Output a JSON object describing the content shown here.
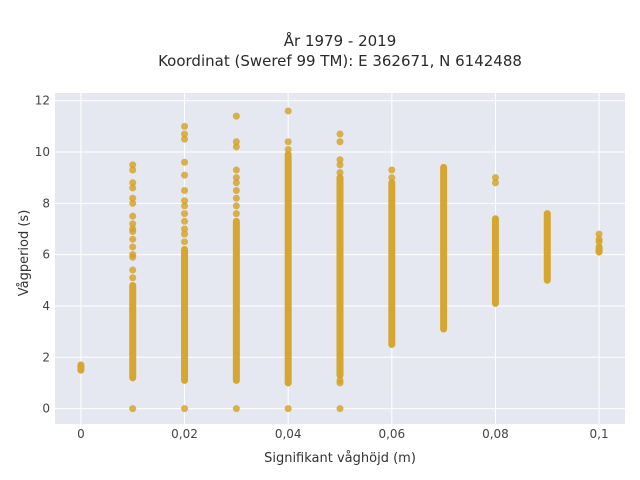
{
  "chart_data": {
    "type": "scatter",
    "title_line1": "År 1979 - 2019",
    "title_line2": "Koordinat (Sweref 99 TM): E 362671, N 6142488",
    "xlabel": "Signifikant våghöjd (m)",
    "ylabel": "Vågperiod (s)",
    "xlim": [
      -0.005,
      0.105
    ],
    "ylim": [
      -0.6,
      12.3
    ],
    "xticks": [
      0,
      0.02,
      0.04,
      0.06,
      0.08,
      0.1
    ],
    "xtick_labels": [
      "0",
      "0,02",
      "0,04",
      "0,06",
      "0,08",
      "0,1"
    ],
    "yticks": [
      0,
      2,
      4,
      6,
      8,
      10,
      12
    ],
    "ytick_labels": [
      "0",
      "2",
      "4",
      "6",
      "8",
      "10",
      "12"
    ],
    "grid": true,
    "colors": {
      "marker": "#D4A020",
      "plot_bg": "#E5E8F0",
      "grid": "#ffffff"
    },
    "columns": [
      {
        "x": 0,
        "dense": [
          1.5,
          1.7
        ],
        "points": []
      },
      {
        "x": 0.01,
        "dense": [
          1.2,
          4.8
        ],
        "points": [
          0,
          5.1,
          5.4,
          5.9,
          6.0,
          6.3,
          6.6,
          6.9,
          7.0,
          7.2,
          7.5,
          8.0,
          8.2,
          8.6,
          8.8,
          9.3,
          9.5
        ]
      },
      {
        "x": 0.02,
        "dense": [
          1.1,
          6.2
        ],
        "points": [
          0,
          6.5,
          6.8,
          7.0,
          7.3,
          7.6,
          7.9,
          8.1,
          8.5,
          9.1,
          9.6,
          10.5,
          10.7,
          11.0
        ]
      },
      {
        "x": 0.03,
        "dense": [
          1.1,
          7.3
        ],
        "points": [
          0,
          7.6,
          7.9,
          8.2,
          8.5,
          8.8,
          9.0,
          9.3,
          10.2,
          10.4,
          11.4
        ]
      },
      {
        "x": 0.04,
        "dense": [
          1.0,
          9.9
        ],
        "points": [
          0,
          10.1,
          10.4,
          11.6
        ]
      },
      {
        "x": 0.05,
        "dense": [
          1.3,
          9.0
        ],
        "points": [
          0,
          1.0,
          1.1,
          9.2,
          9.5,
          9.7,
          10.4,
          10.7
        ]
      },
      {
        "x": 0.06,
        "dense": [
          2.5,
          8.8
        ],
        "points": [
          9.0,
          9.3
        ]
      },
      {
        "x": 0.07,
        "dense": [
          3.1,
          9.4
        ],
        "points": []
      },
      {
        "x": 0.08,
        "dense": [
          4.1,
          7.4
        ],
        "points": [
          8.8,
          9.0
        ]
      },
      {
        "x": 0.09,
        "dense": [
          5.0,
          7.6
        ],
        "points": []
      },
      {
        "x": 0.1,
        "dense": [
          6.1,
          6.3
        ],
        "points": [
          6.5,
          6.6,
          6.8
        ]
      }
    ]
  }
}
